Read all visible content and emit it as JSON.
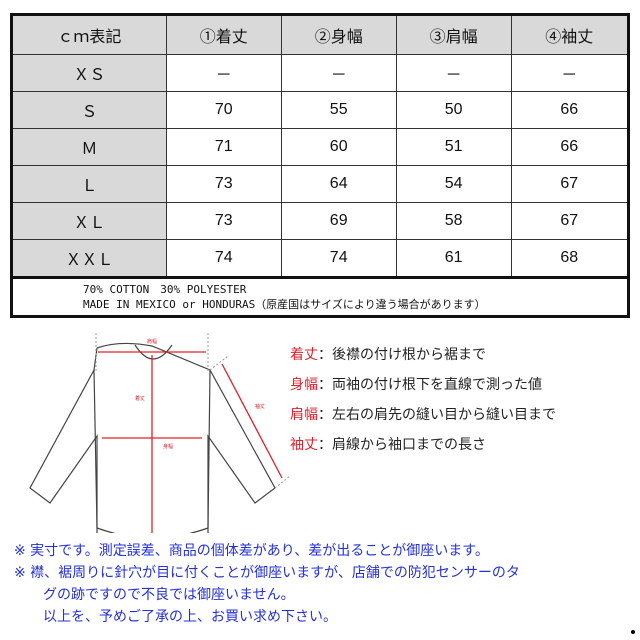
{
  "table": {
    "headers": [
      "ｃｍ表記",
      "①着丈",
      "②身幅",
      "③肩幅",
      "④袖丈"
    ],
    "rows": [
      [
        "ＸＳ",
        "－",
        "－",
        "－",
        "－"
      ],
      [
        "Ｓ",
        "70",
        "55",
        "50",
        "66"
      ],
      [
        "Ｍ",
        "71",
        "60",
        "51",
        "66"
      ],
      [
        "Ｌ",
        "73",
        "64",
        "54",
        "67"
      ],
      [
        "ＸＬ",
        "73",
        "69",
        "58",
        "67"
      ],
      [
        "ＸＸＬ",
        "74",
        "74",
        "61",
        "68"
      ]
    ],
    "notes": [
      "70% COTTON　30% POLYESTER",
      "MADE IN MEXICO or HONDURAS（原産国はサイズにより違う場合があります）"
    ]
  },
  "diagram": {
    "labels": {
      "shoulder": "肩幅",
      "length": "着丈",
      "width": "身幅",
      "sleeve": "袖丈"
    },
    "accent": "#e0202a"
  },
  "definitions": [
    {
      "key": "着丈",
      "text": "：後襟の付け根から裾まで"
    },
    {
      "key": "身幅",
      "text": "：両袖の付け根下を直線で測った値"
    },
    {
      "key": "肩幅",
      "text": "：左右の肩先の縫い目から縫い目まで"
    },
    {
      "key": "袖丈",
      "text": "：肩線から袖口までの長さ"
    }
  ],
  "notices": [
    "※ 実寸です。測定誤差、商品の個体差があり、差が出ることが御座います。",
    "※ 襟、裾周りに針穴が目に付くことが御座いますが、店舗での防犯センサーのタ",
    "グの跡ですので不良では御座いません。",
    "以上を、予めご了承の上、お買い求め下さい。"
  ],
  "colors": {
    "notice": "#2530d8",
    "header_bg": "#d9d9d9"
  }
}
